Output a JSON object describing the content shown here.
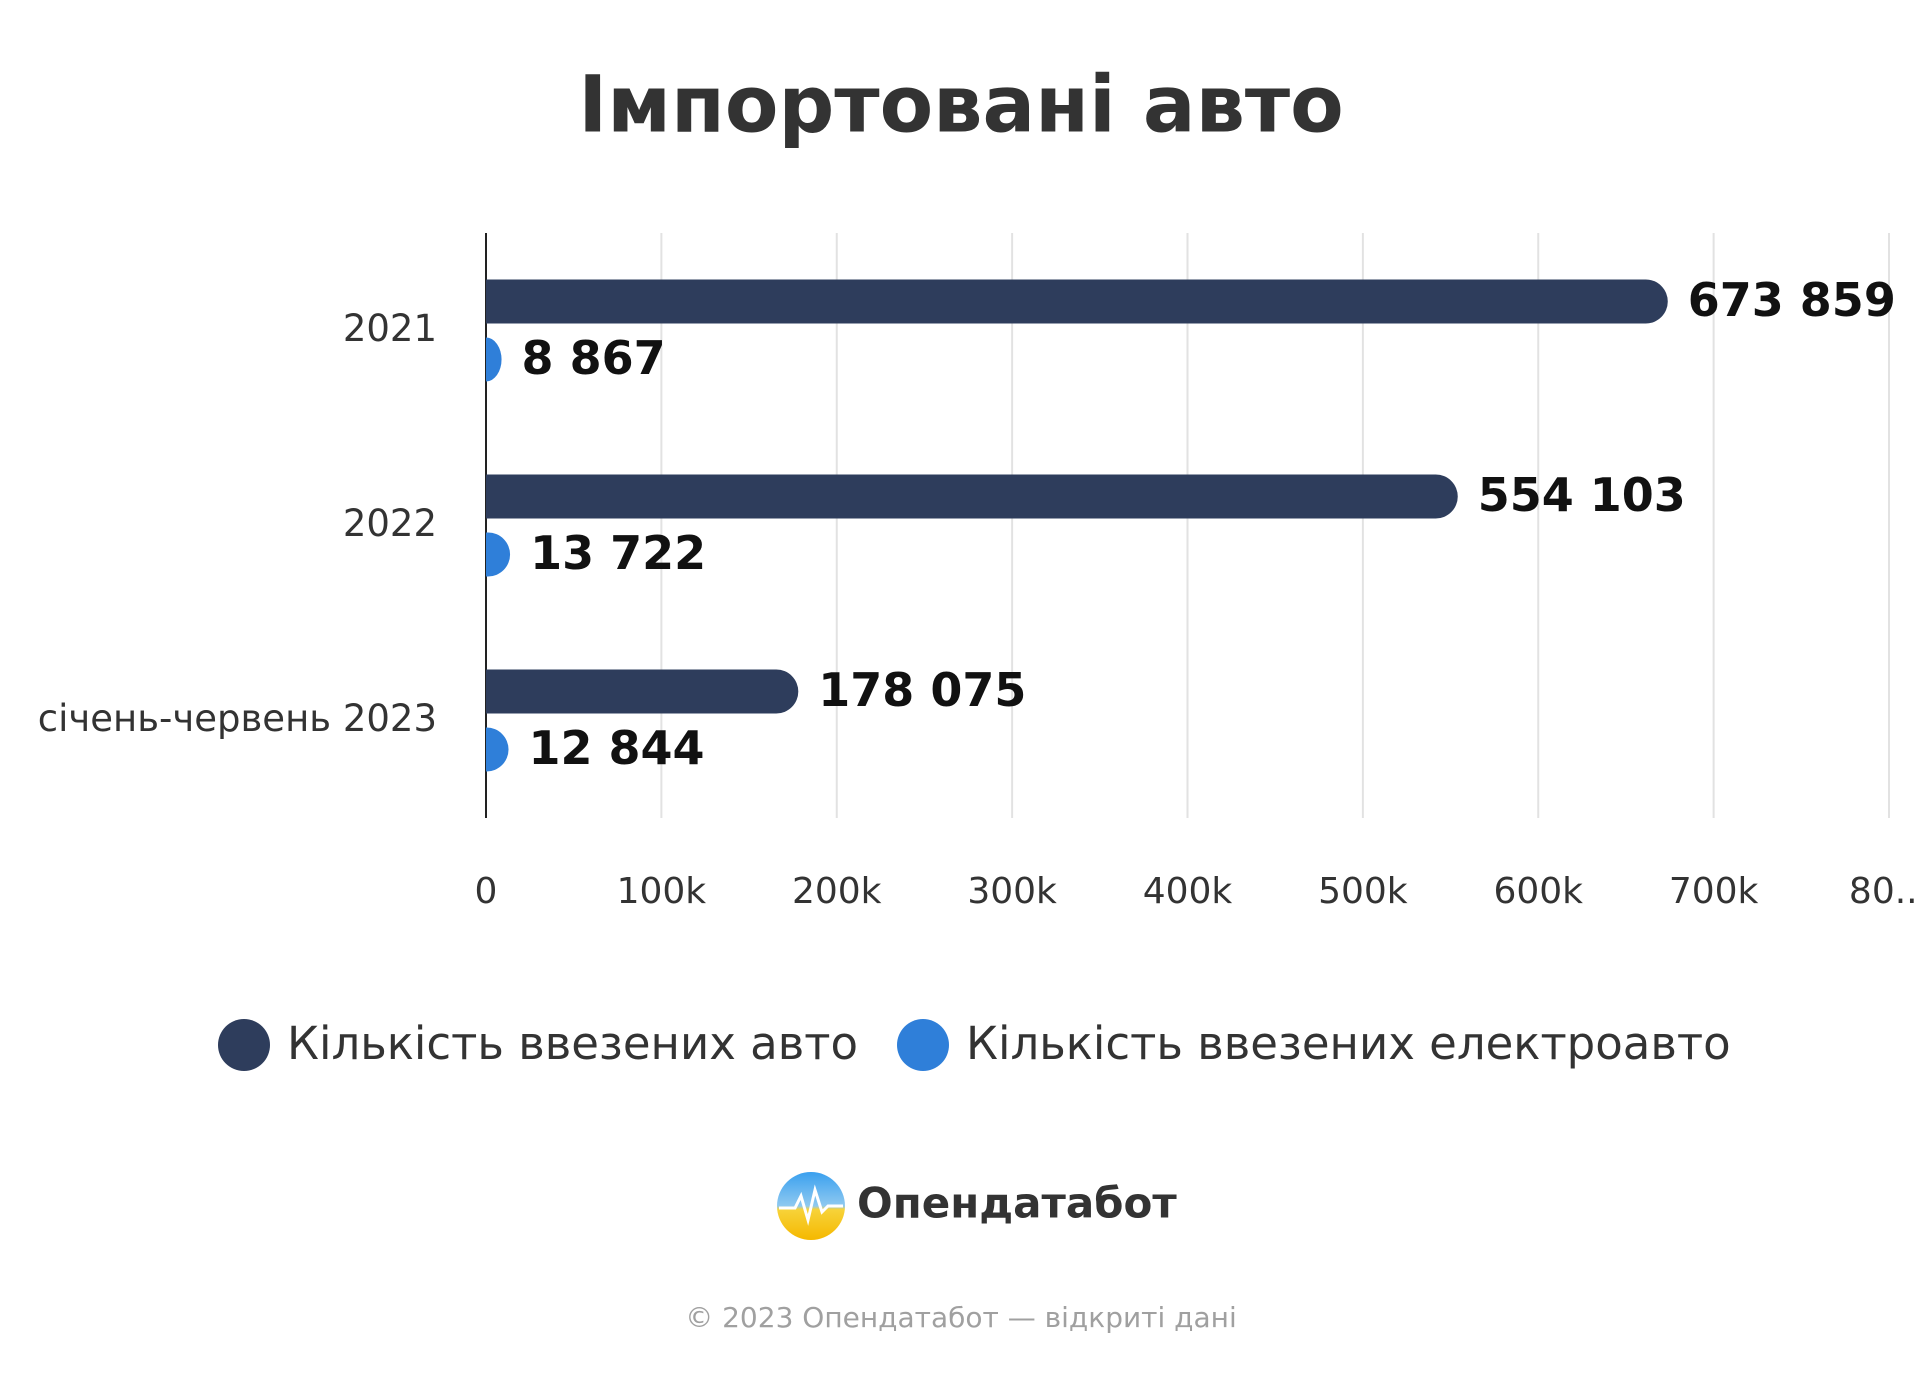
{
  "chart_data": {
    "type": "hbar",
    "title": "Імпортовані авто",
    "categories": [
      "2021",
      "2022",
      "січень-червень 2023"
    ],
    "series": [
      {
        "name": "Кількість ввезених авто",
        "color": "#2e3d5c",
        "values": [
          673859,
          554103,
          178075
        ],
        "value_labels": [
          "673 859",
          "554 103",
          "178 075"
        ]
      },
      {
        "name": "Кількість ввезених електроавто",
        "color": "#2f7fd9",
        "values": [
          8867,
          13722,
          12844
        ],
        "value_labels": [
          "8 867",
          "13 722",
          "12 844"
        ]
      }
    ],
    "xlim": [
      0,
      800000
    ],
    "xticks": [
      0,
      {
        "value": 100000,
        "label": "100k"
      },
      {
        "value": 200000,
        "label": "200k"
      },
      {
        "value": 300000,
        "label": "300k"
      },
      {
        "value": 400000,
        "label": "400k"
      },
      {
        "value": 500000,
        "label": "500k"
      },
      {
        "value": 600000,
        "label": "600k"
      },
      {
        "value": 700000,
        "label": "700k"
      },
      {
        "value": 800000,
        "label": "80..."
      }
    ],
    "grid": true,
    "legend": "bottom"
  },
  "footer": {
    "brand": "Опендатабот",
    "copyright": "© 2023 Опендатабот — відкриті дані"
  }
}
